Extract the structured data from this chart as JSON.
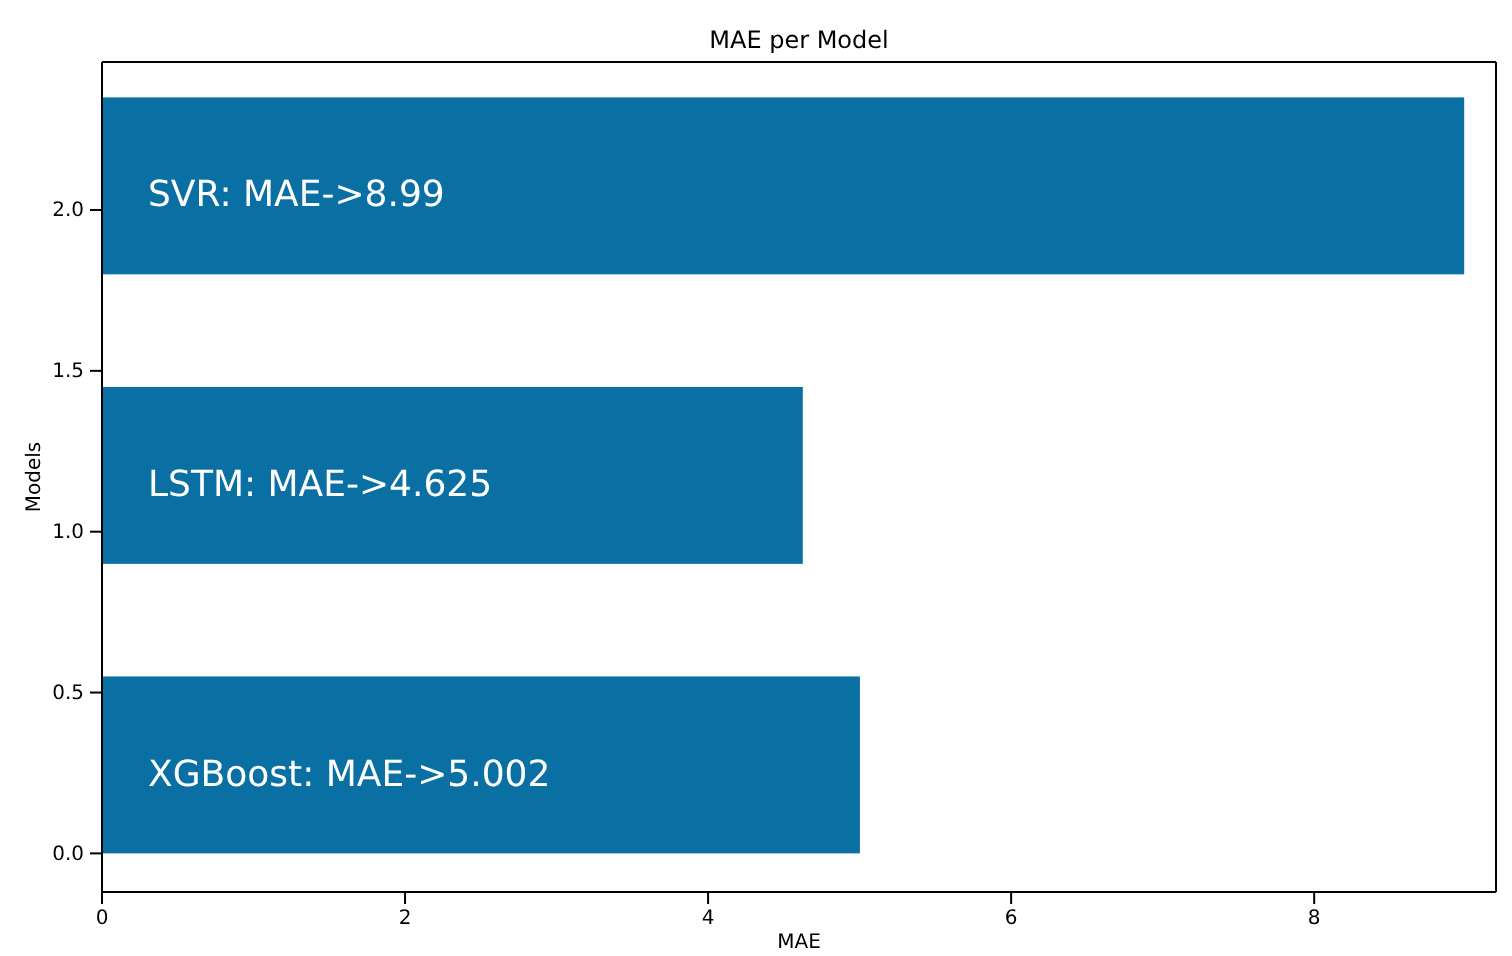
{
  "chart_data": {
    "type": "bar",
    "orientation": "horizontal",
    "title": "MAE per Model",
    "xlabel": "MAE",
    "ylabel": "Models",
    "x": [
      0.275,
      1.175,
      2.075
    ],
    "values": [
      5.002,
      4.625,
      8.99
    ],
    "color": "#0a6fa3",
    "xlim": [
      0,
      9.2
    ],
    "xticks": [
      0,
      2,
      4,
      6,
      8
    ],
    "ylim": [
      -0.12,
      2.46
    ],
    "yticks": [
      {
        "value": 0,
        "label": "0.0"
      },
      {
        "value": 0.5,
        "label": "0.5"
      },
      {
        "value": 1,
        "label": "1.0"
      },
      {
        "value": 1.5,
        "label": "1.5"
      },
      {
        "value": 2,
        "label": "2.0"
      }
    ],
    "annotations": [
      "XGBoost: MAE->5.002",
      "LSTM: MAE->4.625",
      "SVR: MAE->8.99"
    ],
    "grid": false
  }
}
